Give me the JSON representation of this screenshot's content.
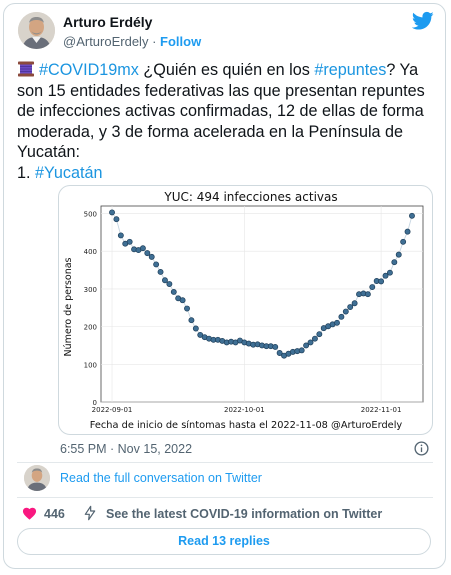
{
  "author": {
    "name": "Arturo Erdély",
    "handle": "@ArturoErdely",
    "separator": "·",
    "follow_label": "Follow"
  },
  "tweet": {
    "hashtag_covid": "#COVID19mx",
    "text_1": " ¿Quién es quién en los ",
    "hashtag_repuntes": "#repuntes",
    "text_2": "? Ya son 15 entidades federativas las que presentan repuntes de infecciones activas confirmadas, 12 de ellas de forma moderada, y 3 de forma acelerada en la Península de Yucatán:",
    "list_prefix": "1. ",
    "hashtag_yucatan": "#Yucatán",
    "spool_icon": "thread-spool-icon"
  },
  "timestamp": "6:55 PM · Nov 15, 2022",
  "read_conversation": "Read the full conversation on Twitter",
  "likes_count": "446",
  "covid_info_link": "See the latest COVID-19 information on Twitter",
  "read_replies": "Read 13 replies",
  "colors": {
    "link": "#1d9bf0",
    "heart": "#f91880",
    "marker": "#3f6f94",
    "marker_edge": "#1f3f5a"
  },
  "chart_data": {
    "type": "scatter",
    "title": "YUC:  494 infecciones activas",
    "xlabel": "Fecha de inicio de síntomas hasta el 2022-11-08 @ArturoErdely",
    "ylabel": "Número de personas",
    "x_ticks": [
      "2022-09-01",
      "2022-10-01",
      "2022-11-01"
    ],
    "y_ticks": [
      0,
      100,
      200,
      300,
      400,
      500
    ],
    "ylim": [
      0,
      520
    ],
    "grid": true,
    "legend": "none",
    "x": [
      "2022-09-01",
      "2022-09-02",
      "2022-09-03",
      "2022-09-04",
      "2022-09-05",
      "2022-09-06",
      "2022-09-07",
      "2022-09-08",
      "2022-09-09",
      "2022-09-10",
      "2022-09-11",
      "2022-09-12",
      "2022-09-13",
      "2022-09-14",
      "2022-09-15",
      "2022-09-16",
      "2022-09-17",
      "2022-09-18",
      "2022-09-19",
      "2022-09-20",
      "2022-09-21",
      "2022-09-22",
      "2022-09-23",
      "2022-09-24",
      "2022-09-25",
      "2022-09-26",
      "2022-09-27",
      "2022-09-28",
      "2022-09-29",
      "2022-09-30",
      "2022-10-01",
      "2022-10-02",
      "2022-10-03",
      "2022-10-04",
      "2022-10-05",
      "2022-10-06",
      "2022-10-07",
      "2022-10-08",
      "2022-10-09",
      "2022-10-10",
      "2022-10-11",
      "2022-10-12",
      "2022-10-13",
      "2022-10-14",
      "2022-10-15",
      "2022-10-16",
      "2022-10-17",
      "2022-10-18",
      "2022-10-19",
      "2022-10-20",
      "2022-10-21",
      "2022-10-22",
      "2022-10-23",
      "2022-10-24",
      "2022-10-25",
      "2022-10-26",
      "2022-10-27",
      "2022-10-28",
      "2022-10-29",
      "2022-10-30",
      "2022-10-31",
      "2022-11-01",
      "2022-11-02",
      "2022-11-03",
      "2022-11-04",
      "2022-11-05",
      "2022-11-06",
      "2022-11-07",
      "2022-11-08"
    ],
    "values": [
      503,
      485,
      442,
      420,
      425,
      405,
      403,
      408,
      395,
      385,
      365,
      345,
      323,
      313,
      292,
      275,
      270,
      248,
      217,
      195,
      178,
      172,
      168,
      165,
      165,
      162,
      158,
      160,
      158,
      163,
      158,
      155,
      152,
      153,
      150,
      148,
      148,
      146,
      130,
      123,
      128,
      133,
      135,
      137,
      150,
      158,
      168,
      180,
      196,
      201,
      206,
      210,
      226,
      240,
      252,
      262,
      286,
      288,
      286,
      305,
      321,
      320,
      335,
      343,
      371,
      391,
      425,
      452,
      494
    ]
  }
}
